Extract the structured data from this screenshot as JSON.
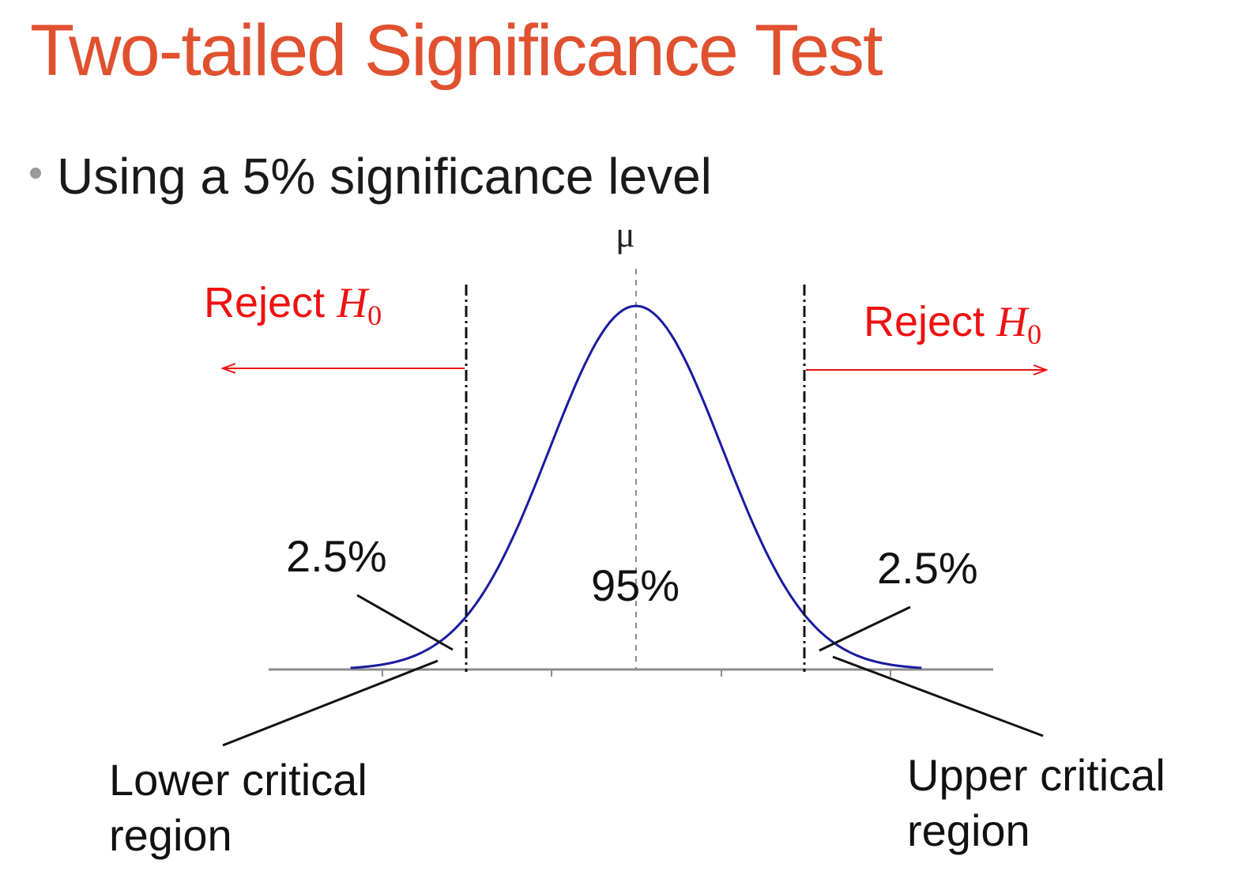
{
  "title": "Two-tailed Significance Test",
  "bullet": "Using a 5% significance level",
  "diagram": {
    "mean_label": "μ",
    "reject_left": {
      "text": "Reject ",
      "h": "H",
      "sub": "0"
    },
    "reject_right": {
      "text": "Reject ",
      "h": "H",
      "sub": "0"
    },
    "tail_left_pct": "2.5%",
    "center_pct": "95%",
    "tail_right_pct": "2.5%",
    "lower_region": {
      "line1": "Lower critical",
      "line2": "region"
    },
    "upper_region": {
      "line1": "Upper critical",
      "line2": "region"
    }
  },
  "colors": {
    "title": "#e0512f",
    "curve": "#1a1aa0",
    "reject": "#ee1111",
    "axis": "#8c8c8c"
  }
}
